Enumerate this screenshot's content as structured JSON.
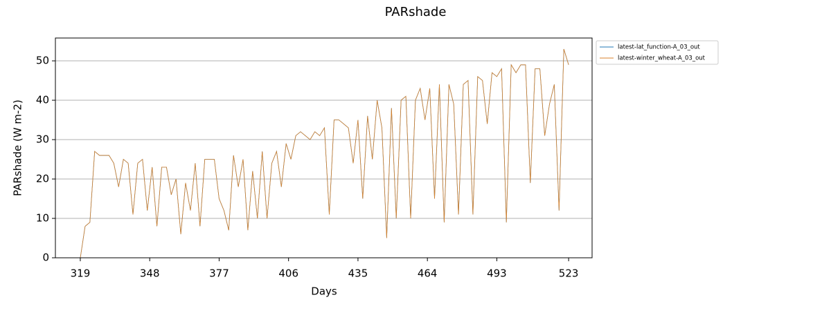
{
  "chart_data": {
    "type": "line",
    "title": "PARshade",
    "xlabel": "Days",
    "ylabel": "PARshade (W m-2)",
    "x": [
      319,
      321,
      323,
      325,
      327,
      329,
      331,
      333,
      335,
      337,
      339,
      341,
      343,
      345,
      347,
      349,
      351,
      353,
      355,
      357,
      359,
      361,
      363,
      365,
      367,
      369,
      371,
      373,
      375,
      377,
      379,
      381,
      383,
      385,
      387,
      389,
      391,
      393,
      395,
      397,
      399,
      401,
      403,
      405,
      407,
      409,
      411,
      413,
      415,
      417,
      419,
      421,
      423,
      425,
      427,
      429,
      431,
      433,
      435,
      437,
      439,
      441,
      443,
      445,
      447,
      449,
      451,
      453,
      455,
      457,
      459,
      461,
      463,
      465,
      467,
      469,
      471,
      473,
      475,
      477,
      479,
      481,
      483,
      485,
      487,
      489,
      491,
      493,
      495,
      497,
      499,
      501,
      503,
      505,
      507,
      509,
      511,
      513,
      515,
      517,
      519,
      521,
      523
    ],
    "series": [
      {
        "name": "latest-lat_function-A_03_out",
        "color": "#1f77b4",
        "values": [
          0,
          8,
          9,
          27,
          26,
          26,
          26,
          24,
          18,
          25,
          24,
          11,
          24,
          25,
          12,
          23,
          8,
          23,
          23,
          16,
          20,
          6,
          19,
          12,
          24,
          8,
          25,
          25,
          25,
          15,
          12,
          7,
          26,
          18,
          25,
          7,
          22,
          10,
          27,
          10,
          24,
          27,
          18,
          29,
          25,
          31,
          32,
          31,
          30,
          32,
          31,
          33,
          11,
          35,
          35,
          34,
          33,
          24,
          35,
          15,
          36,
          25,
          40,
          33,
          5,
          38,
          10,
          40,
          41,
          10,
          40,
          43,
          35,
          43,
          15,
          44,
          9,
          44,
          39,
          11,
          44,
          45,
          11,
          46,
          45,
          34,
          47,
          46,
          48,
          9,
          49,
          47,
          49,
          49,
          19,
          48,
          48,
          31,
          39,
          44,
          12,
          53,
          49
        ]
      },
      {
        "name": "latest-winter_wheat-A_03_out",
        "color": "#d9822b",
        "values": [
          0,
          8,
          9,
          27,
          26,
          26,
          26,
          24,
          18,
          25,
          24,
          11,
          24,
          25,
          12,
          23,
          8,
          23,
          23,
          16,
          20,
          6,
          19,
          12,
          24,
          8,
          25,
          25,
          25,
          15,
          12,
          7,
          26,
          18,
          25,
          7,
          22,
          10,
          27,
          10,
          24,
          27,
          18,
          29,
          25,
          31,
          32,
          31,
          30,
          32,
          31,
          33,
          11,
          35,
          35,
          34,
          33,
          24,
          35,
          15,
          36,
          25,
          40,
          33,
          5,
          38,
          10,
          40,
          41,
          10,
          40,
          43,
          35,
          43,
          15,
          44,
          9,
          44,
          39,
          11,
          44,
          45,
          11,
          46,
          45,
          34,
          47,
          46,
          48,
          9,
          49,
          47,
          49,
          49,
          19,
          48,
          48,
          31,
          39,
          44,
          12,
          53,
          49
        ]
      }
    ],
    "xlim": [
      308.6,
      532.8
    ],
    "xticks": [
      319,
      348,
      377,
      406,
      435,
      464,
      493,
      523
    ],
    "ylim": [
      0,
      55.8
    ],
    "yticks": [
      0,
      10,
      20,
      30,
      40,
      50
    ],
    "grid": true,
    "legend": "outside-upper-right"
  }
}
